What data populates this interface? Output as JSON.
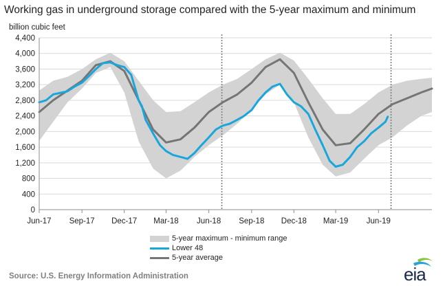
{
  "chart_data": {
    "type": "line",
    "title": "Working gas in underground  storage compared with the 5-year maximum and minimum",
    "ylabel": "billion cubic feet",
    "ylim": [
      0,
      4400
    ],
    "yticks": [
      0,
      400,
      800,
      1200,
      1600,
      2000,
      2400,
      2800,
      3200,
      3600,
      4000,
      4400
    ],
    "xlim": [
      "2017-06-01",
      "2019-09-24"
    ],
    "xticks": [
      {
        "label": "Jun-17",
        "date": "2017-06-01"
      },
      {
        "label": "Sep-17",
        "date": "2017-09-01"
      },
      {
        "label": "Dec-17",
        "date": "2017-12-01"
      },
      {
        "label": "Mar-18",
        "date": "2018-03-01"
      },
      {
        "label": "Jun-18",
        "date": "2018-06-01"
      },
      {
        "label": "Sep-18",
        "date": "2018-09-01"
      },
      {
        "label": "Dec-18",
        "date": "2018-12-01"
      },
      {
        "label": "Mar-19",
        "date": "2019-03-01"
      },
      {
        "label": "Jun-19",
        "date": "2019-06-01"
      }
    ],
    "grid": "horizontal",
    "legend_position": "bottom",
    "vlines": [
      "2018-06-29",
      "2019-06-28"
    ],
    "band": {
      "name": "5-year maximum - minimum range",
      "color": "#d3d3d3",
      "x": [
        "2017-06-01",
        "2017-07-01",
        "2017-08-01",
        "2017-09-01",
        "2017-10-01",
        "2017-11-01",
        "2017-12-01",
        "2018-01-01",
        "2018-02-01",
        "2018-03-01",
        "2018-04-01",
        "2018-05-01",
        "2018-06-01",
        "2018-07-01",
        "2018-08-01",
        "2018-09-01",
        "2018-10-01",
        "2018-11-01",
        "2018-12-01",
        "2019-01-01",
        "2019-02-01",
        "2019-03-01",
        "2019-04-01",
        "2019-05-01",
        "2019-06-01",
        "2019-07-01",
        "2019-08-01",
        "2019-09-01",
        "2019-09-24"
      ],
      "max": [
        3050,
        3300,
        3400,
        3600,
        3850,
        4020,
        3800,
        3300,
        2800,
        2500,
        2520,
        2750,
        3000,
        3200,
        3350,
        3600,
        3850,
        4020,
        3820,
        3350,
        2850,
        2450,
        2450,
        2700,
        3000,
        3200,
        3300,
        3350,
        3380
      ],
      "min": [
        1760,
        2250,
        2750,
        3100,
        3500,
        3650,
        3000,
        1750,
        1050,
        800,
        1000,
        1350,
        1650,
        1900,
        2200,
        2550,
        2950,
        3200,
        2750,
        1850,
        1150,
        850,
        950,
        1300,
        1650,
        1850,
        2150,
        2400,
        2500
      ]
    },
    "series": [
      {
        "name": "Lower 48",
        "color": "#19a6da",
        "x": [
          "2017-06-01",
          "2017-06-16",
          "2017-07-01",
          "2017-07-16",
          "2017-08-01",
          "2017-08-16",
          "2017-09-01",
          "2017-09-16",
          "2017-10-01",
          "2017-10-16",
          "2017-11-01",
          "2017-11-16",
          "2017-12-01",
          "2017-12-16",
          "2018-01-01",
          "2018-01-08",
          "2018-01-16",
          "2018-02-01",
          "2018-02-16",
          "2018-03-01",
          "2018-03-16",
          "2018-04-01",
          "2018-04-16",
          "2018-05-01",
          "2018-05-16",
          "2018-06-01",
          "2018-06-16",
          "2018-07-01",
          "2018-07-16",
          "2018-08-01",
          "2018-08-16",
          "2018-09-01",
          "2018-09-16",
          "2018-10-01",
          "2018-10-16",
          "2018-11-01",
          "2018-11-16",
          "2018-12-01",
          "2018-12-16",
          "2019-01-01",
          "2019-01-16",
          "2019-02-01",
          "2019-02-16",
          "2019-03-01",
          "2019-03-16",
          "2019-04-01",
          "2019-04-16",
          "2019-05-01",
          "2019-05-16",
          "2019-06-01",
          "2019-06-16",
          "2019-06-21"
        ],
        "values": [
          2750,
          2800,
          2950,
          2990,
          3030,
          3150,
          3250,
          3420,
          3600,
          3750,
          3770,
          3700,
          3650,
          3450,
          2800,
          2650,
          2300,
          1950,
          1650,
          1500,
          1400,
          1350,
          1300,
          1450,
          1650,
          1850,
          2050,
          2150,
          2200,
          2300,
          2400,
          2550,
          2800,
          3000,
          3150,
          3220,
          2950,
          2750,
          2650,
          2450,
          2050,
          1650,
          1250,
          1100,
          1150,
          1350,
          1600,
          1750,
          1950,
          2100,
          2250,
          2380
        ]
      },
      {
        "name": "5-year average",
        "color": "#757575",
        "x": [
          "2017-06-01",
          "2017-07-01",
          "2017-08-01",
          "2017-09-01",
          "2017-10-01",
          "2017-11-01",
          "2017-12-01",
          "2018-01-01",
          "2018-02-01",
          "2018-03-01",
          "2018-04-01",
          "2018-05-01",
          "2018-06-01",
          "2018-07-01",
          "2018-08-01",
          "2018-09-01",
          "2018-10-01",
          "2018-11-01",
          "2018-12-01",
          "2019-01-01",
          "2019-02-01",
          "2019-03-01",
          "2019-04-01",
          "2019-05-01",
          "2019-06-01",
          "2019-07-01",
          "2019-08-01",
          "2019-09-01",
          "2019-09-24"
        ],
        "values": [
          2500,
          2800,
          3050,
          3300,
          3700,
          3800,
          3550,
          2800,
          2050,
          1720,
          1800,
          2100,
          2500,
          2750,
          2950,
          3250,
          3650,
          3850,
          3500,
          2750,
          2050,
          1650,
          1700,
          2050,
          2450,
          2700,
          2850,
          3000,
          3100
        ]
      }
    ],
    "legend": [
      {
        "label": "5-year maximum - minimum range"
      },
      {
        "label": "Lower 48"
      },
      {
        "label": "5-year average"
      }
    ]
  },
  "footer": {
    "source": "Source:  U.S. Energy Information Administration",
    "logo": "eia"
  },
  "colors": {
    "grid": "#d9d9d9",
    "axis": "#8c8c8c",
    "vline": "#7f7f7f",
    "logo_swoosh": "#26a3d9",
    "logo_leaf": "#8cc43f"
  }
}
